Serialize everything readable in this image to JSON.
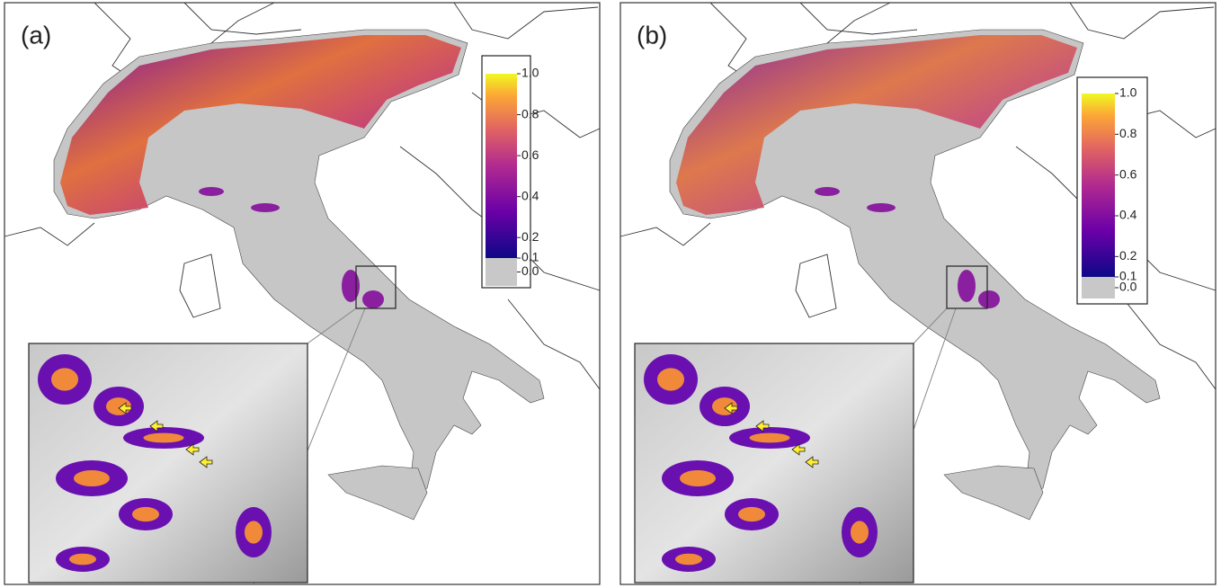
{
  "panels": [
    {
      "label": "(a)",
      "colorbar_ticks": [
        {
          "value": 0,
          "label": "0.0"
        },
        0.1,
        0.2,
        0.4,
        0.6,
        0.8,
        {
          "value": 1,
          "label": "1.0"
        }
      ]
    },
    {
      "label": "(b)",
      "colorbar_ticks": [
        {
          "value": 0,
          "label": "0.0"
        },
        0.1,
        0.2,
        0.4,
        0.6,
        0.8,
        {
          "value": 1,
          "label": "1.0"
        }
      ]
    }
  ]
}
